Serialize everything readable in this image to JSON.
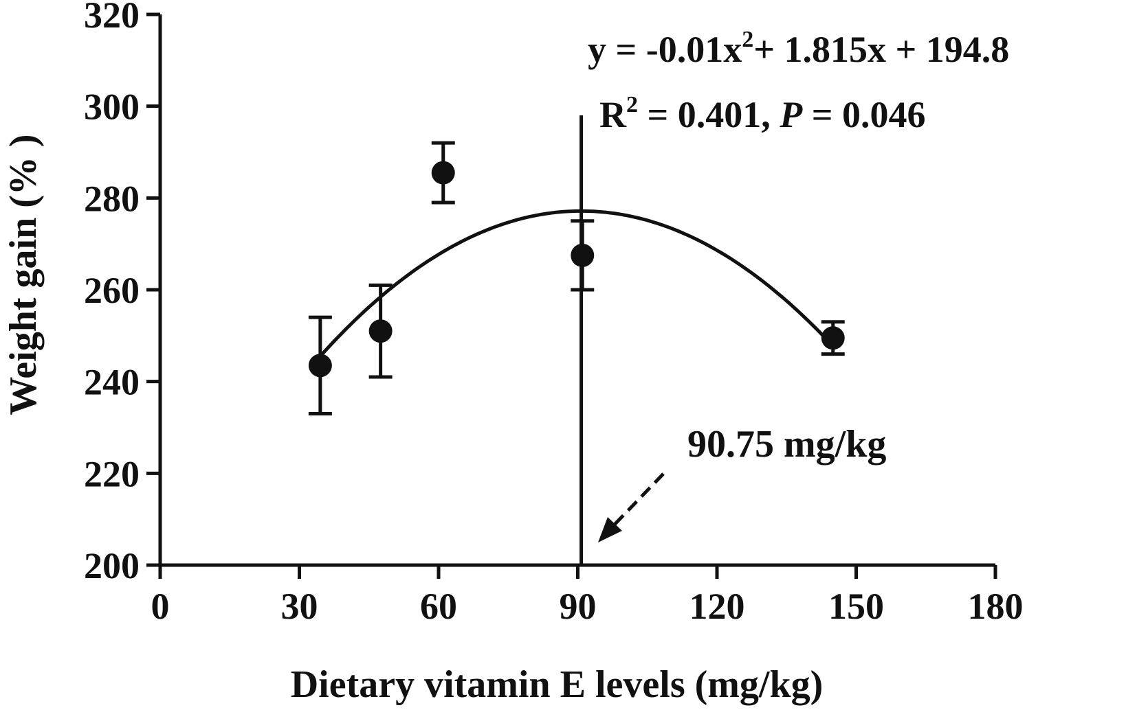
{
  "chart_data": {
    "type": "scatter",
    "title": "",
    "xlabel": "Dietary vitamin E levels (mg/kg)",
    "ylabel": "Weight gain (% )",
    "xlim": [
      0,
      180
    ],
    "ylim": [
      200,
      320
    ],
    "xticks": [
      "0",
      "30",
      "60",
      "90",
      "120",
      "150",
      "180"
    ],
    "yticks": [
      "200",
      "220",
      "240",
      "260",
      "280",
      "300",
      "320"
    ],
    "grid": false,
    "points": [
      {
        "x": 34.5,
        "y": 243.5,
        "err": 10.5
      },
      {
        "x": 47.5,
        "y": 251.0,
        "err": 10.0
      },
      {
        "x": 61.0,
        "y": 285.5,
        "err": 6.5
      },
      {
        "x": 91.0,
        "y": 267.5,
        "err": 7.5
      },
      {
        "x": 145.0,
        "y": 249.5,
        "err": 3.5
      }
    ],
    "fit": {
      "type": "quadratic",
      "a": -0.01,
      "b": 1.815,
      "c": 194.8,
      "x_range": [
        34.5,
        145
      ]
    },
    "optimum_line": {
      "x": 90.75,
      "y_top": 298
    },
    "annotations": {
      "equation": {
        "prefix": "y = -0.01x",
        "exp": "2",
        "suffix": "+ 1.815x + 194.8"
      },
      "stats": {
        "r": "R",
        "r_exp": "2",
        "r_rest": " = 0.401, ",
        "p": "P",
        "p_rest": " = 0.046"
      },
      "optimum_label": "90.75 mg/kg"
    }
  }
}
